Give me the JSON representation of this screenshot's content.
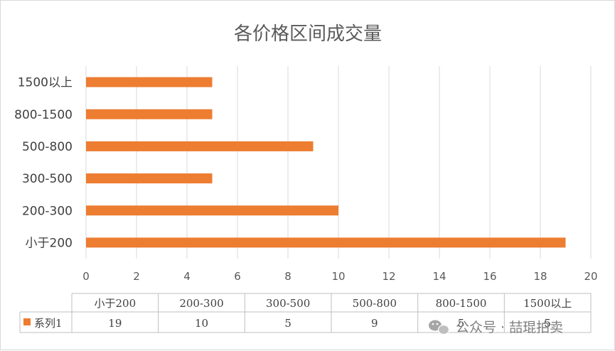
{
  "chart_data": {
    "type": "bar",
    "orientation": "horizontal",
    "title": "各价格区间成交量",
    "categories": [
      "小于200",
      "200-300",
      "300-500",
      "500-800",
      "800-1500",
      "1500以上"
    ],
    "series": [
      {
        "name": "系列1",
        "values": [
          19,
          10,
          5,
          9,
          5,
          5
        ]
      }
    ],
    "xlim": [
      0,
      20
    ],
    "x_ticks": [
      0,
      2,
      4,
      6,
      8,
      10,
      12,
      14,
      16,
      18,
      20
    ],
    "grid": true,
    "legend": "data-table-bottom",
    "bar_color": "#ED7D31"
  },
  "watermark": {
    "icon": "wechat-icon",
    "text": "公众号 · 喆琨拍卖"
  }
}
